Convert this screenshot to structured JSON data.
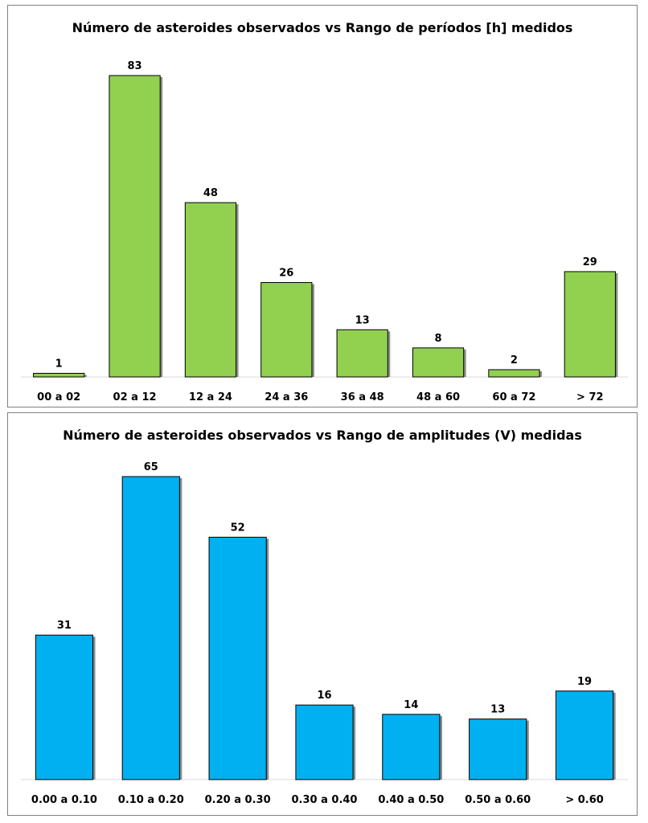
{
  "chart_data": [
    {
      "type": "bar",
      "title": "Número de asteroides observados vs Rango de períodos [h] medidos",
      "categories": [
        "00 a 02",
        "02 a 12",
        "12 a 24",
        "24 a 36",
        "36 a 48",
        "48 a 60",
        "60 a 72",
        "> 72"
      ],
      "values": [
        1,
        83,
        48,
        26,
        13,
        8,
        2,
        29
      ],
      "value_labels": [
        "1",
        "83",
        "48",
        "26",
        "13",
        "8",
        "2",
        "29"
      ],
      "ylim": [
        0,
        83
      ],
      "grid": false,
      "legend": "none",
      "bar_color": "#92d050"
    },
    {
      "type": "bar",
      "title": "Número de asteroides observados vs Rango de amplitudes (V) medidas",
      "categories": [
        "0.00 a 0.10",
        "0.10 a 0.20",
        "0.20 a 0.30",
        "0.30 a 0.40",
        "0.40 a 0.50",
        "0.50 a 0.60",
        "> 0.60"
      ],
      "values": [
        31,
        65,
        52,
        16,
        14,
        13,
        19
      ],
      "value_labels": [
        "31",
        "65",
        "52",
        "16",
        "14",
        "13",
        "19"
      ],
      "ylim": [
        0,
        65
      ],
      "grid": false,
      "legend": "none",
      "bar_color": "#00b0f0"
    }
  ]
}
